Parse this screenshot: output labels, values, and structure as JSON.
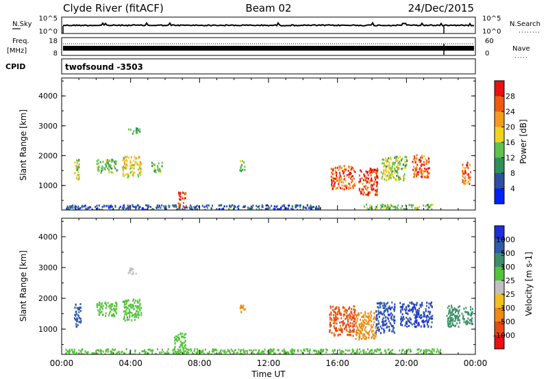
{
  "header": {
    "station": "Clyde River (fitACF)",
    "beam": "Beam 02",
    "date": "24/Dec/2015"
  },
  "noise_panel": {
    "left_label": "N.Sky",
    "right_label": "N.Search",
    "tick_top": "10^5",
    "tick_bottom": "10^0",
    "right_tick_top": "10^5",
    "right_tick_bottom": "10^0"
  },
  "freq_panel": {
    "left_label_1": "Freq.",
    "left_label_2": "[MHz]",
    "right_label": "Nave",
    "tick_top": "18",
    "tick_bottom": "8",
    "right_tick_top": "60",
    "right_tick_bottom": "0"
  },
  "cpid_panel": {
    "label": "CPID",
    "text": "twofsound -3503"
  },
  "axes": {
    "ylabel": "Slant Range [km]",
    "xlabel": "Time UT",
    "y_ticks": [
      "1000",
      "2000",
      "3000",
      "4000"
    ],
    "x_ticks": [
      "00:00",
      "04:00",
      "08:00",
      "12:00",
      "16:00",
      "20:00",
      "00:00"
    ]
  },
  "power_colorbar": {
    "label": "Power [dB]",
    "ticks": [
      "4",
      "8",
      "12",
      "16",
      "20",
      "24",
      "28"
    ],
    "colors": [
      "#0020ff",
      "#2e4fa0",
      "#2e8f5a",
      "#5fc24a",
      "#f2d21e",
      "#f59a1c",
      "#f05a10",
      "#e81010"
    ]
  },
  "velocity_colorbar": {
    "label": "Velocity [m s-1]",
    "ticks": [
      "1000",
      "500",
      "100",
      "25",
      "-25",
      "-100",
      "-500",
      "-1000"
    ],
    "colors": [
      "#1c2fd6",
      "#2e5aa8",
      "#3a8f6a",
      "#55c23a",
      "#c0c0c0",
      "#f0c01e",
      "#f08a10",
      "#e84a10",
      "#e81010"
    ]
  },
  "chart_data": [
    {
      "type": "heatmap",
      "title": "Power",
      "xlabel": "Time UT",
      "ylabel": "Slant Range [km]",
      "xlim": [
        "00:00",
        "24:00"
      ],
      "ylim": [
        180,
        4600
      ],
      "colorbar": "Power [dB]",
      "regions": [
        {
          "t0": 0.7,
          "t1": 1.0,
          "r0": 1200,
          "r1": 1900,
          "value": 16
        },
        {
          "t0": 2.0,
          "t1": 3.2,
          "r0": 1450,
          "r1": 1900,
          "value": 14
        },
        {
          "t0": 3.5,
          "t1": 4.6,
          "r0": 1300,
          "r1": 2000,
          "value": 18
        },
        {
          "t0": 3.8,
          "t1": 4.5,
          "r0": 2750,
          "r1": 2950,
          "value": 12
        },
        {
          "t0": 5.2,
          "t1": 5.8,
          "r0": 1450,
          "r1": 1800,
          "value": 14
        },
        {
          "t0": 6.7,
          "t1": 7.2,
          "r0": 280,
          "r1": 800,
          "value": 28
        },
        {
          "t0": 10.3,
          "t1": 10.6,
          "r0": 1500,
          "r1": 1850,
          "value": 14
        },
        {
          "t0": 15.6,
          "t1": 17.0,
          "r0": 900,
          "r1": 1700,
          "value": 26
        },
        {
          "t0": 17.2,
          "t1": 18.3,
          "r0": 700,
          "r1": 1600,
          "value": 28
        },
        {
          "t0": 18.5,
          "t1": 20.0,
          "r0": 1200,
          "r1": 2000,
          "value": 16
        },
        {
          "t0": 20.3,
          "t1": 21.3,
          "r0": 1300,
          "r1": 2050,
          "value": 26
        },
        {
          "t0": 23.2,
          "t1": 23.7,
          "r0": 1050,
          "r1": 1800,
          "value": 26
        },
        {
          "t0": 0.2,
          "t1": 15.0,
          "r0": 180,
          "r1": 380,
          "value": 6
        },
        {
          "t0": 17.5,
          "t1": 21.5,
          "r0": 180,
          "r1": 400,
          "value": 14
        }
      ]
    },
    {
      "type": "heatmap",
      "title": "Velocity",
      "xlabel": "Time UT",
      "ylabel": "Slant Range [km]",
      "xlim": [
        "00:00",
        "24:00"
      ],
      "ylim": [
        180,
        4600
      ],
      "colorbar": "Velocity [m s-1]",
      "regions": [
        {
          "t0": 0.7,
          "t1": 1.1,
          "r0": 1100,
          "r1": 1900,
          "value": 800
        },
        {
          "t0": 2.0,
          "t1": 3.2,
          "r0": 1450,
          "r1": 1900,
          "value": 60
        },
        {
          "t0": 3.5,
          "t1": 4.6,
          "r0": 1300,
          "r1": 2000,
          "value": 80
        },
        {
          "t0": 3.8,
          "t1": 4.3,
          "r0": 2800,
          "r1": 3000,
          "value": 0
        },
        {
          "t0": 6.5,
          "t1": 7.2,
          "r0": 250,
          "r1": 900,
          "value": 80
        },
        {
          "t0": 10.3,
          "t1": 10.6,
          "r0": 1500,
          "r1": 1850,
          "value": -400
        },
        {
          "t0": 15.5,
          "t1": 17.0,
          "r0": 800,
          "r1": 1800,
          "value": -600
        },
        {
          "t0": 17.0,
          "t1": 18.2,
          "r0": 700,
          "r1": 1600,
          "value": -300
        },
        {
          "t0": 18.2,
          "t1": 19.3,
          "r0": 900,
          "r1": 1900,
          "value": 900
        },
        {
          "t0": 19.6,
          "t1": 21.5,
          "r0": 1100,
          "r1": 1900,
          "value": 1000
        },
        {
          "t0": 22.3,
          "t1": 23.8,
          "r0": 1100,
          "r1": 1800,
          "value": 300
        },
        {
          "t0": 0.2,
          "t1": 22.0,
          "r0": 180,
          "r1": 380,
          "value": 50
        }
      ]
    }
  ]
}
